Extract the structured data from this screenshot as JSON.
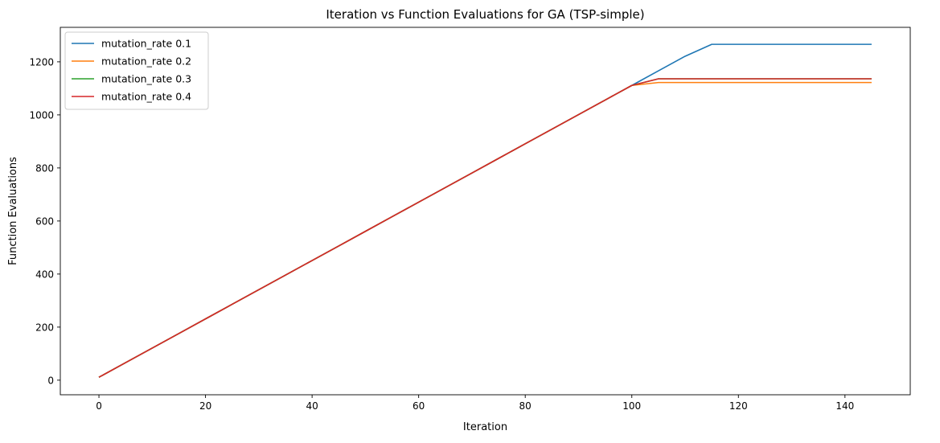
{
  "chart_data": {
    "type": "line",
    "title": "Iteration vs Function Evaluations for GA (TSP-simple)",
    "xlabel": "Iteration",
    "ylabel": "Function Evaluations",
    "xlim": [
      -7.25,
      152.25
    ],
    "ylim": [
      -55,
      1330
    ],
    "xticks": [
      0,
      20,
      40,
      60,
      80,
      100,
      120,
      140
    ],
    "yticks": [
      0,
      200,
      400,
      600,
      800,
      1000,
      1200
    ],
    "grid": false,
    "legend_position": "top-left",
    "series": [
      {
        "name": "mutation_rate 0.1",
        "color": "#1f77b4",
        "x": [
          0,
          5,
          10,
          15,
          20,
          25,
          30,
          35,
          40,
          45,
          50,
          55,
          60,
          65,
          70,
          75,
          80,
          85,
          90,
          95,
          100,
          105,
          110,
          115,
          120,
          125,
          130,
          135,
          140,
          145
        ],
        "y": [
          11,
          66,
          121,
          176,
          231,
          286,
          341,
          396,
          451,
          506,
          561,
          616,
          671,
          726,
          781,
          836,
          891,
          946,
          1001,
          1056,
          1111,
          1166,
          1221,
          1266,
          1266,
          1266,
          1266,
          1266,
          1266,
          1266
        ]
      },
      {
        "name": "mutation_rate 0.2",
        "color": "#ff7f0e",
        "x": [
          0,
          5,
          10,
          15,
          20,
          25,
          30,
          35,
          40,
          45,
          50,
          55,
          60,
          65,
          70,
          75,
          80,
          85,
          90,
          95,
          100,
          105,
          110,
          115,
          120,
          125,
          130,
          135,
          140,
          145
        ],
        "y": [
          11,
          66,
          121,
          176,
          231,
          286,
          341,
          396,
          451,
          506,
          561,
          616,
          671,
          726,
          781,
          836,
          891,
          946,
          1001,
          1056,
          1111,
          1122,
          1122,
          1122,
          1122,
          1122,
          1122,
          1122,
          1122,
          1122
        ]
      },
      {
        "name": "mutation_rate 0.3",
        "color": "#2ca02c",
        "x": [
          0,
          5,
          10,
          15,
          20,
          25,
          30,
          35,
          40,
          45,
          50,
          55,
          60,
          65,
          70,
          75,
          80,
          85,
          90,
          95,
          100,
          105,
          110,
          115,
          120,
          125,
          130,
          135,
          140,
          145
        ],
        "y": [
          11,
          66,
          121,
          176,
          231,
          286,
          341,
          396,
          451,
          506,
          561,
          616,
          671,
          726,
          781,
          836,
          891,
          946,
          1001,
          1056,
          1111,
          1136,
          1136,
          1136,
          1136,
          1136,
          1136,
          1136,
          1136,
          1136
        ]
      },
      {
        "name": "mutation_rate 0.4",
        "color": "#d62728",
        "x": [
          0,
          5,
          10,
          15,
          20,
          25,
          30,
          35,
          40,
          45,
          50,
          55,
          60,
          65,
          70,
          75,
          80,
          85,
          90,
          95,
          100,
          105,
          110,
          115,
          120,
          125,
          130,
          135,
          140,
          145
        ],
        "y": [
          11,
          66,
          121,
          176,
          231,
          286,
          341,
          396,
          451,
          506,
          561,
          616,
          671,
          726,
          781,
          836,
          891,
          946,
          1001,
          1056,
          1111,
          1136,
          1136,
          1136,
          1136,
          1136,
          1136,
          1136,
          1136,
          1136
        ]
      }
    ]
  }
}
